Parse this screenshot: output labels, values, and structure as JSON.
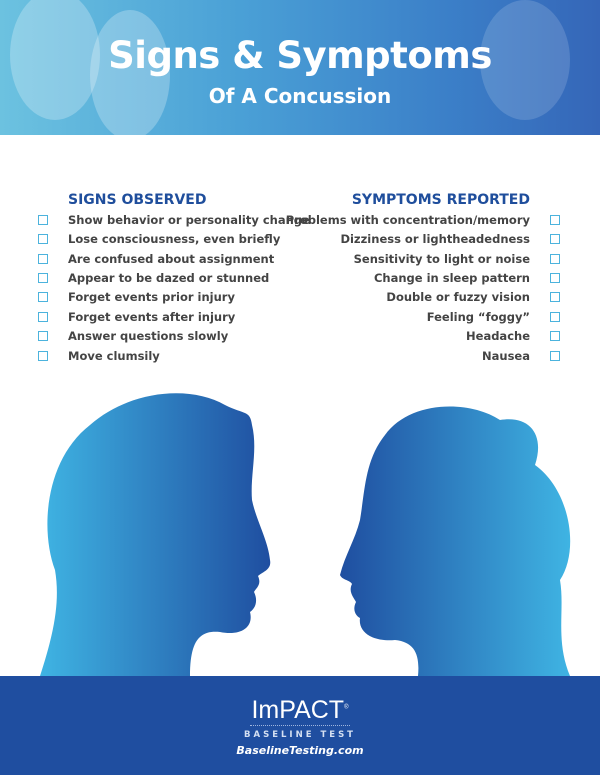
{
  "header": {
    "title": "Signs & Symptoms",
    "subtitle": "Of A Concussion"
  },
  "signs": {
    "heading": "SIGNS OBSERVED",
    "items": [
      "Show behavior or personality change",
      "Lose consciousness, even briefly",
      "Are confused about assignment",
      "Appear to be dazed or stunned",
      "Forget events prior injury",
      "Forget events after injury",
      "Answer questions slowly",
      "Move clumsily"
    ]
  },
  "symptoms": {
    "heading": "SYMPTOMS REPORTED",
    "items": [
      "Problems with concentration/memory",
      "Dizziness or lightheadedness",
      "Sensitivity to light or noise",
      "Change in sleep pattern",
      "Double or fuzzy vision",
      "Feeling “foggy”",
      "Headache",
      "Nausea"
    ]
  },
  "footer": {
    "logo": "ImPACT",
    "logo_mark": "®",
    "tagline": "BASELINE TEST",
    "url": "BaselineTesting.com"
  },
  "colors": {
    "brand": "#1f4ea0",
    "checkbox": "#4cb3dd",
    "silhouette_light": "#3fb4e3",
    "silhouette_dark": "#1f4ea0"
  }
}
